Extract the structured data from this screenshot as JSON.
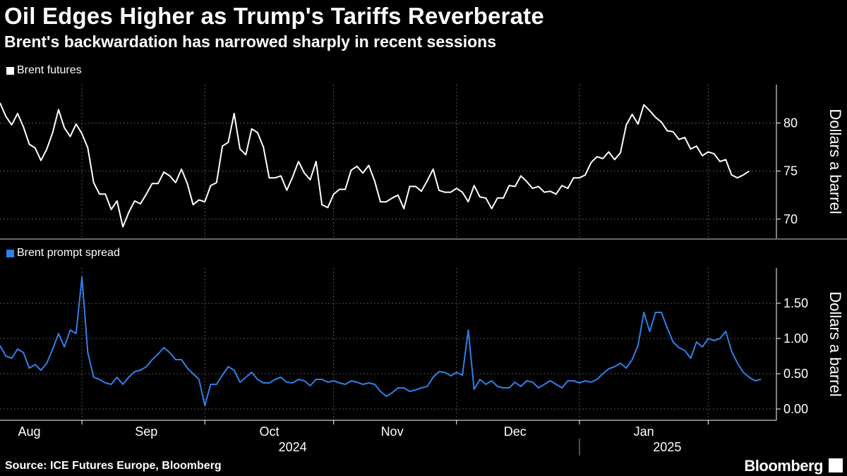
{
  "header": {
    "title": "Oil Edges Higher as Trump's Tariffs Reverberate",
    "subtitle": "Brent's backwardation has narrowed sharply in recent sessions"
  },
  "colors": {
    "background": "#000000",
    "futures": "#ffffff",
    "spread": "#2f7fe8",
    "grid": "#555555"
  },
  "chart_data": [
    {
      "type": "line",
      "legend": "Brent futures",
      "ylabel": "Dollars a barrel",
      "ylim": [
        68,
        84
      ],
      "yticks": [
        70,
        75,
        80
      ],
      "ytick_labels": [
        "70",
        "75",
        "80"
      ],
      "x_start": 0,
      "x_step": 1,
      "values": [
        82.1,
        80.7,
        79.8,
        81.0,
        79.6,
        77.8,
        77.4,
        76.1,
        77.3,
        79.0,
        81.4,
        79.5,
        78.6,
        79.9,
        78.9,
        77.4,
        73.8,
        72.6,
        72.6,
        71.0,
        71.9,
        69.2,
        70.7,
        71.9,
        71.6,
        72.6,
        73.7,
        73.7,
        74.9,
        74.5,
        73.8,
        75.2,
        73.7,
        71.5,
        72.0,
        71.8,
        73.5,
        73.8,
        77.6,
        78.0,
        81.0,
        77.3,
        76.7,
        79.4,
        79.0,
        77.5,
        74.3,
        74.3,
        74.5,
        73.0,
        74.4,
        76.0,
        74.8,
        74.1,
        76.0,
        71.5,
        71.2,
        72.6,
        73.1,
        73.1,
        75.1,
        75.5,
        74.8,
        75.6,
        74.0,
        71.8,
        71.8,
        72.2,
        72.5,
        71.1,
        73.4,
        73.4,
        72.9,
        74.0,
        75.2,
        73.0,
        72.8,
        72.8,
        73.2,
        72.8,
        71.8,
        73.5,
        72.3,
        72.2,
        71.1,
        72.2,
        72.2,
        73.5,
        73.4,
        74.5,
        73.9,
        73.2,
        73.4,
        72.8,
        72.9,
        72.6,
        73.5,
        73.2,
        74.3,
        74.3,
        74.6,
        75.9,
        76.5,
        76.3,
        77.0,
        76.2,
        76.9,
        79.8,
        80.9,
        79.9,
        81.9,
        81.3,
        80.6,
        80.1,
        79.2,
        79.1,
        78.3,
        78.5,
        77.3,
        77.6,
        76.6,
        77.0,
        76.8,
        76.0,
        76.2,
        74.6,
        74.3,
        74.6,
        75.0
      ]
    },
    {
      "type": "line",
      "legend": "Brent prompt spread",
      "ylabel": "Dollars a barrel",
      "ylim": [
        -0.16,
        2.0
      ],
      "yticks": [
        0.0,
        0.5,
        1.0,
        1.5
      ],
      "ytick_labels": [
        "0.00",
        "0.50",
        "1.00",
        "1.50"
      ],
      "x_start": 0,
      "x_step": 1,
      "values": [
        0.9,
        0.75,
        0.72,
        0.85,
        0.8,
        0.58,
        0.63,
        0.55,
        0.65,
        0.85,
        1.07,
        0.88,
        1.12,
        1.07,
        1.87,
        0.8,
        0.45,
        0.42,
        0.37,
        0.35,
        0.45,
        0.35,
        0.45,
        0.53,
        0.55,
        0.6,
        0.7,
        0.78,
        0.87,
        0.8,
        0.7,
        0.7,
        0.58,
        0.5,
        0.42,
        0.05,
        0.35,
        0.35,
        0.48,
        0.6,
        0.55,
        0.38,
        0.45,
        0.52,
        0.42,
        0.37,
        0.37,
        0.42,
        0.45,
        0.38,
        0.37,
        0.42,
        0.4,
        0.33,
        0.42,
        0.42,
        0.38,
        0.4,
        0.37,
        0.35,
        0.4,
        0.38,
        0.35,
        0.37,
        0.35,
        0.25,
        0.18,
        0.23,
        0.3,
        0.3,
        0.25,
        0.27,
        0.3,
        0.32,
        0.45,
        0.53,
        0.52,
        0.47,
        0.52,
        0.48,
        1.12,
        0.28,
        0.42,
        0.35,
        0.4,
        0.32,
        0.3,
        0.3,
        0.38,
        0.32,
        0.4,
        0.38,
        0.3,
        0.35,
        0.4,
        0.35,
        0.3,
        0.4,
        0.4,
        0.37,
        0.4,
        0.38,
        0.42,
        0.5,
        0.57,
        0.6,
        0.65,
        0.58,
        0.7,
        0.9,
        1.37,
        1.1,
        1.37,
        1.37,
        1.15,
        0.95,
        0.87,
        0.83,
        0.72,
        0.95,
        0.88,
        1.0,
        0.97,
        1.0,
        1.1,
        0.82,
        0.65,
        0.52,
        0.45,
        0.4,
        0.42
      ]
    }
  ],
  "x_axis": {
    "month_labels": [
      "Aug",
      "Sep",
      "Oct",
      "Nov",
      "Dec",
      "Jan"
    ],
    "month_label_positions": [
      5,
      25,
      46,
      67,
      88,
      110
    ],
    "month_boundaries": [
      14,
      35,
      57,
      78,
      99,
      121
    ],
    "year_labels": [
      "2024",
      "2025"
    ],
    "year_label_positions": [
      50,
      114
    ],
    "year_divider": 99
  },
  "footer": {
    "source": "Source: ICE Futures Europe, Bloomberg",
    "brand": "Bloomberg"
  }
}
